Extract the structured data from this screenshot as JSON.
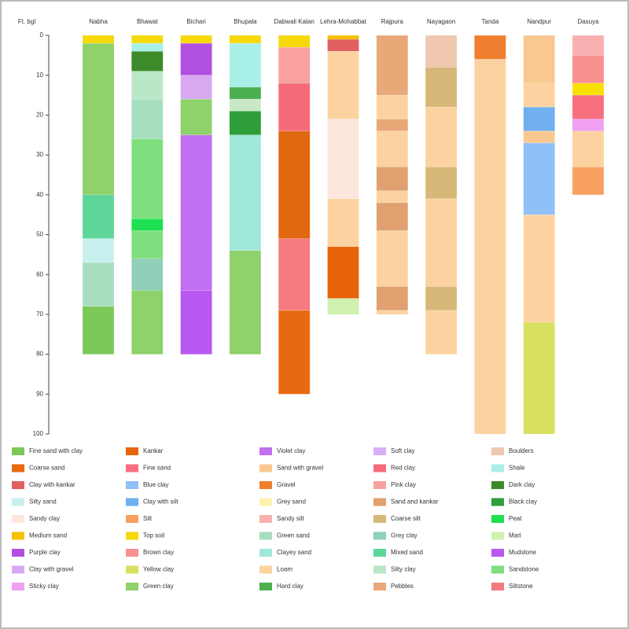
{
  "chart_data": {
    "type": "strat-columns",
    "y_label": "Ft. bgl",
    "ylim": [
      0,
      100
    ],
    "yticks": [
      0,
      10,
      20,
      30,
      40,
      50,
      60,
      70,
      80,
      90,
      100
    ],
    "columns": [
      {
        "name": "Nabha",
        "layers": [
          {
            "from": 0,
            "to": 2,
            "color": "#f5d90a"
          },
          {
            "from": 2,
            "to": 40,
            "color": "#8fd16a"
          },
          {
            "from": 40,
            "to": 51,
            "color": "#5ed69a"
          },
          {
            "from": 51,
            "to": 57,
            "color": "#c8f0ee"
          },
          {
            "from": 57,
            "to": 68,
            "color": "#a8dec0"
          },
          {
            "from": 68,
            "to": 80,
            "color": "#7cc95a"
          }
        ]
      },
      {
        "name": "Bhawat",
        "layers": [
          {
            "from": 0,
            "to": 2,
            "color": "#f5d90a"
          },
          {
            "from": 2,
            "to": 4,
            "color": "#a8f0e8"
          },
          {
            "from": 4,
            "to": 9,
            "color": "#3d8a2a"
          },
          {
            "from": 9,
            "to": 16,
            "color": "#b8e8c8"
          },
          {
            "from": 16,
            "to": 26,
            "color": "#a8dec0"
          },
          {
            "from": 26,
            "to": 46,
            "color": "#7ee07e"
          },
          {
            "from": 46,
            "to": 49,
            "color": "#1ee050"
          },
          {
            "from": 49,
            "to": 56,
            "color": "#7ee07e"
          },
          {
            "from": 56,
            "to": 64,
            "color": "#90d0b8"
          },
          {
            "from": 64,
            "to": 80,
            "color": "#8fd16a"
          }
        ]
      },
      {
        "name": "Bichari",
        "layers": [
          {
            "from": 0,
            "to": 2,
            "color": "#f5d90a"
          },
          {
            "from": 2,
            "to": 10,
            "color": "#b04fe0"
          },
          {
            "from": 10,
            "to": 16,
            "color": "#d8a8f0"
          },
          {
            "from": 16,
            "to": 25,
            "color": "#8fd16a"
          },
          {
            "from": 25,
            "to": 64,
            "color": "#c070f0"
          },
          {
            "from": 64,
            "to": 80,
            "color": "#b858f0"
          }
        ]
      },
      {
        "name": "Bhupala",
        "layers": [
          {
            "from": 0,
            "to": 2,
            "color": "#f5d90a"
          },
          {
            "from": 2,
            "to": 13,
            "color": "#a8f0e8"
          },
          {
            "from": 13,
            "to": 16,
            "color": "#4caf50"
          },
          {
            "from": 16,
            "to": 19,
            "color": "#c8e8c8"
          },
          {
            "from": 19,
            "to": 25,
            "color": "#2e9e3a"
          },
          {
            "from": 25,
            "to": 54,
            "color": "#a0e8d8"
          },
          {
            "from": 54,
            "to": 80,
            "color": "#8fd16a"
          }
        ]
      },
      {
        "name": "Dabwali Kalan",
        "layers": [
          {
            "from": 0,
            "to": 3,
            "color": "#f5d90a"
          },
          {
            "from": 3,
            "to": 12,
            "color": "#f9a0a0"
          },
          {
            "from": 12,
            "to": 24,
            "color": "#f56b7a"
          },
          {
            "from": 24,
            "to": 51,
            "color": "#e06810"
          },
          {
            "from": 51,
            "to": 69,
            "color": "#f57a80"
          },
          {
            "from": 69,
            "to": 90,
            "color": "#e86a10"
          }
        ]
      },
      {
        "name": "Lehra-Mohabbat",
        "layers": [
          {
            "from": 0,
            "to": 1,
            "color": "#f5c000"
          },
          {
            "from": 1,
            "to": 4,
            "color": "#e06060"
          },
          {
            "from": 4,
            "to": 21,
            "color": "#fcd3a0"
          },
          {
            "from": 21,
            "to": 41,
            "color": "#fde6dc"
          },
          {
            "from": 41,
            "to": 53,
            "color": "#fcd3a0"
          },
          {
            "from": 53,
            "to": 66,
            "color": "#e8640a"
          },
          {
            "from": 66,
            "to": 70,
            "color": "#d0f0b0"
          }
        ]
      },
      {
        "name": "Rajpura",
        "layers": [
          {
            "from": 0,
            "to": 15,
            "color": "#e8a878"
          },
          {
            "from": 15,
            "to": 21,
            "color": "#fcd3a0"
          },
          {
            "from": 21,
            "to": 24,
            "color": "#e8a878"
          },
          {
            "from": 24,
            "to": 33,
            "color": "#fcd3a0"
          },
          {
            "from": 33,
            "to": 39,
            "color": "#e0a070"
          },
          {
            "from": 39,
            "to": 42,
            "color": "#fcd3a0"
          },
          {
            "from": 42,
            "to": 49,
            "color": "#e0a070"
          },
          {
            "from": 49,
            "to": 63,
            "color": "#fcd3a0"
          },
          {
            "from": 63,
            "to": 69,
            "color": "#e0a070"
          },
          {
            "from": 69,
            "to": 70,
            "color": "#fcd3a0"
          }
        ]
      },
      {
        "name": "Nayagaon",
        "layers": [
          {
            "from": 0,
            "to": 8,
            "color": "#f0c8b0"
          },
          {
            "from": 8,
            "to": 18,
            "color": "#d8b878"
          },
          {
            "from": 18,
            "to": 33,
            "color": "#fcd3a0"
          },
          {
            "from": 33,
            "to": 41,
            "color": "#d8b878"
          },
          {
            "from": 41,
            "to": 63,
            "color": "#fcd3a0"
          },
          {
            "from": 63,
            "to": 69,
            "color": "#d8b878"
          },
          {
            "from": 69,
            "to": 80,
            "color": "#fcd3a0"
          }
        ]
      },
      {
        "name": "Tanda",
        "layers": [
          {
            "from": 0,
            "to": 6,
            "color": "#f08030"
          },
          {
            "from": 6,
            "to": 100,
            "color": "#fcd3a0"
          }
        ]
      },
      {
        "name": "Nandpur",
        "layers": [
          {
            "from": 0,
            "to": 12,
            "color": "#f8c890"
          },
          {
            "from": 12,
            "to": 18,
            "color": "#fcd3a0"
          },
          {
            "from": 18,
            "to": 24,
            "color": "#70b0f0"
          },
          {
            "from": 24,
            "to": 27,
            "color": "#f8c890"
          },
          {
            "from": 27,
            "to": 45,
            "color": "#90c0f8"
          },
          {
            "from": 45,
            "to": 72,
            "color": "#fcd3a0"
          },
          {
            "from": 72,
            "to": 100,
            "color": "#d8e060"
          }
        ]
      },
      {
        "name": "Dasuya",
        "layers": [
          {
            "from": 0,
            "to": 5,
            "color": "#f8b0b0"
          },
          {
            "from": 5,
            "to": 12,
            "color": "#f89090"
          },
          {
            "from": 12,
            "to": 15,
            "color": "#f8e000"
          },
          {
            "from": 15,
            "to": 21,
            "color": "#f87080"
          },
          {
            "from": 21,
            "to": 24,
            "color": "#f0a0f0"
          },
          {
            "from": 24,
            "to": 33,
            "color": "#fcd3a0"
          },
          {
            "from": 33,
            "to": 40,
            "color": "#f8a060"
          }
        ]
      }
    ],
    "legend": [
      {
        "name": "Fine sand with clay",
        "color": "#7cc95a"
      },
      {
        "name": "Coarse sand",
        "color": "#e86a10"
      },
      {
        "name": "Clay with kankar",
        "color": "#e06060"
      },
      {
        "name": "Silty sand",
        "color": "#c8f0ee"
      },
      {
        "name": "Sandy clay",
        "color": "#fde6dc"
      },
      {
        "name": "Medium sand",
        "color": "#f5c000"
      },
      {
        "name": "Purple clay",
        "color": "#b04fe0"
      },
      {
        "name": "Clay with gravel",
        "color": "#d8a8f0"
      },
      {
        "name": "Sticky clay",
        "color": "#f0a0f0"
      },
      {
        "name": "Kankar",
        "color": "#e8640a"
      },
      {
        "name": "Fine sand",
        "color": "#f87080"
      },
      {
        "name": "Blue clay",
        "color": "#90c0f8"
      },
      {
        "name": "Clay with silt",
        "color": "#70b0f0"
      },
      {
        "name": "Silt",
        "color": "#f8a060"
      },
      {
        "name": "Top soil",
        "color": "#f5d90a"
      },
      {
        "name": "Brown clay",
        "color": "#f89090"
      },
      {
        "name": "Yellow clay",
        "color": "#d8e060"
      },
      {
        "name": "Green clay",
        "color": "#8fd16a"
      },
      {
        "name": "Violet clay",
        "color": "#c070f0"
      },
      {
        "name": "Sand with gravel",
        "color": "#f8c890"
      },
      {
        "name": "Gravel",
        "color": "#f08030"
      },
      {
        "name": "Grey sand",
        "color": "#fff0b0"
      },
      {
        "name": "Sandy silt",
        "color": "#f8b0b0"
      },
      {
        "name": "Green sand",
        "color": "#a8dec0"
      },
      {
        "name": "Clayey sand",
        "color": "#a0e8d8"
      },
      {
        "name": "Loam",
        "color": "#fcd3a0"
      },
      {
        "name": "Hard clay",
        "color": "#4caf50"
      },
      {
        "name": "Soft clay",
        "color": "#d8b0f8"
      },
      {
        "name": "Red clay",
        "color": "#f56b7a"
      },
      {
        "name": "Pink clay",
        "color": "#f9a0a0"
      },
      {
        "name": "Sand and kankar",
        "color": "#e0a070"
      },
      {
        "name": "Coarse silt",
        "color": "#d8b878"
      },
      {
        "name": "Grey clay",
        "color": "#90d0b8"
      },
      {
        "name": "Mixed sand",
        "color": "#5ed69a"
      },
      {
        "name": "Silty clay",
        "color": "#b8e8c8"
      },
      {
        "name": "Pebbles",
        "color": "#e8a878"
      },
      {
        "name": "Boulders",
        "color": "#f0c8b0"
      },
      {
        "name": "Shale",
        "color": "#a8f0e8"
      },
      {
        "name": "Dark clay",
        "color": "#3d8a2a"
      },
      {
        "name": "Black clay",
        "color": "#2e9e3a"
      },
      {
        "name": "Peat",
        "color": "#1ee050"
      },
      {
        "name": "Marl",
        "color": "#d0f0b0"
      },
      {
        "name": "Mudstone",
        "color": "#b858f0"
      },
      {
        "name": "Sandstone",
        "color": "#7ee07e"
      },
      {
        "name": "Siltstone",
        "color": "#f57a80"
      }
    ]
  }
}
